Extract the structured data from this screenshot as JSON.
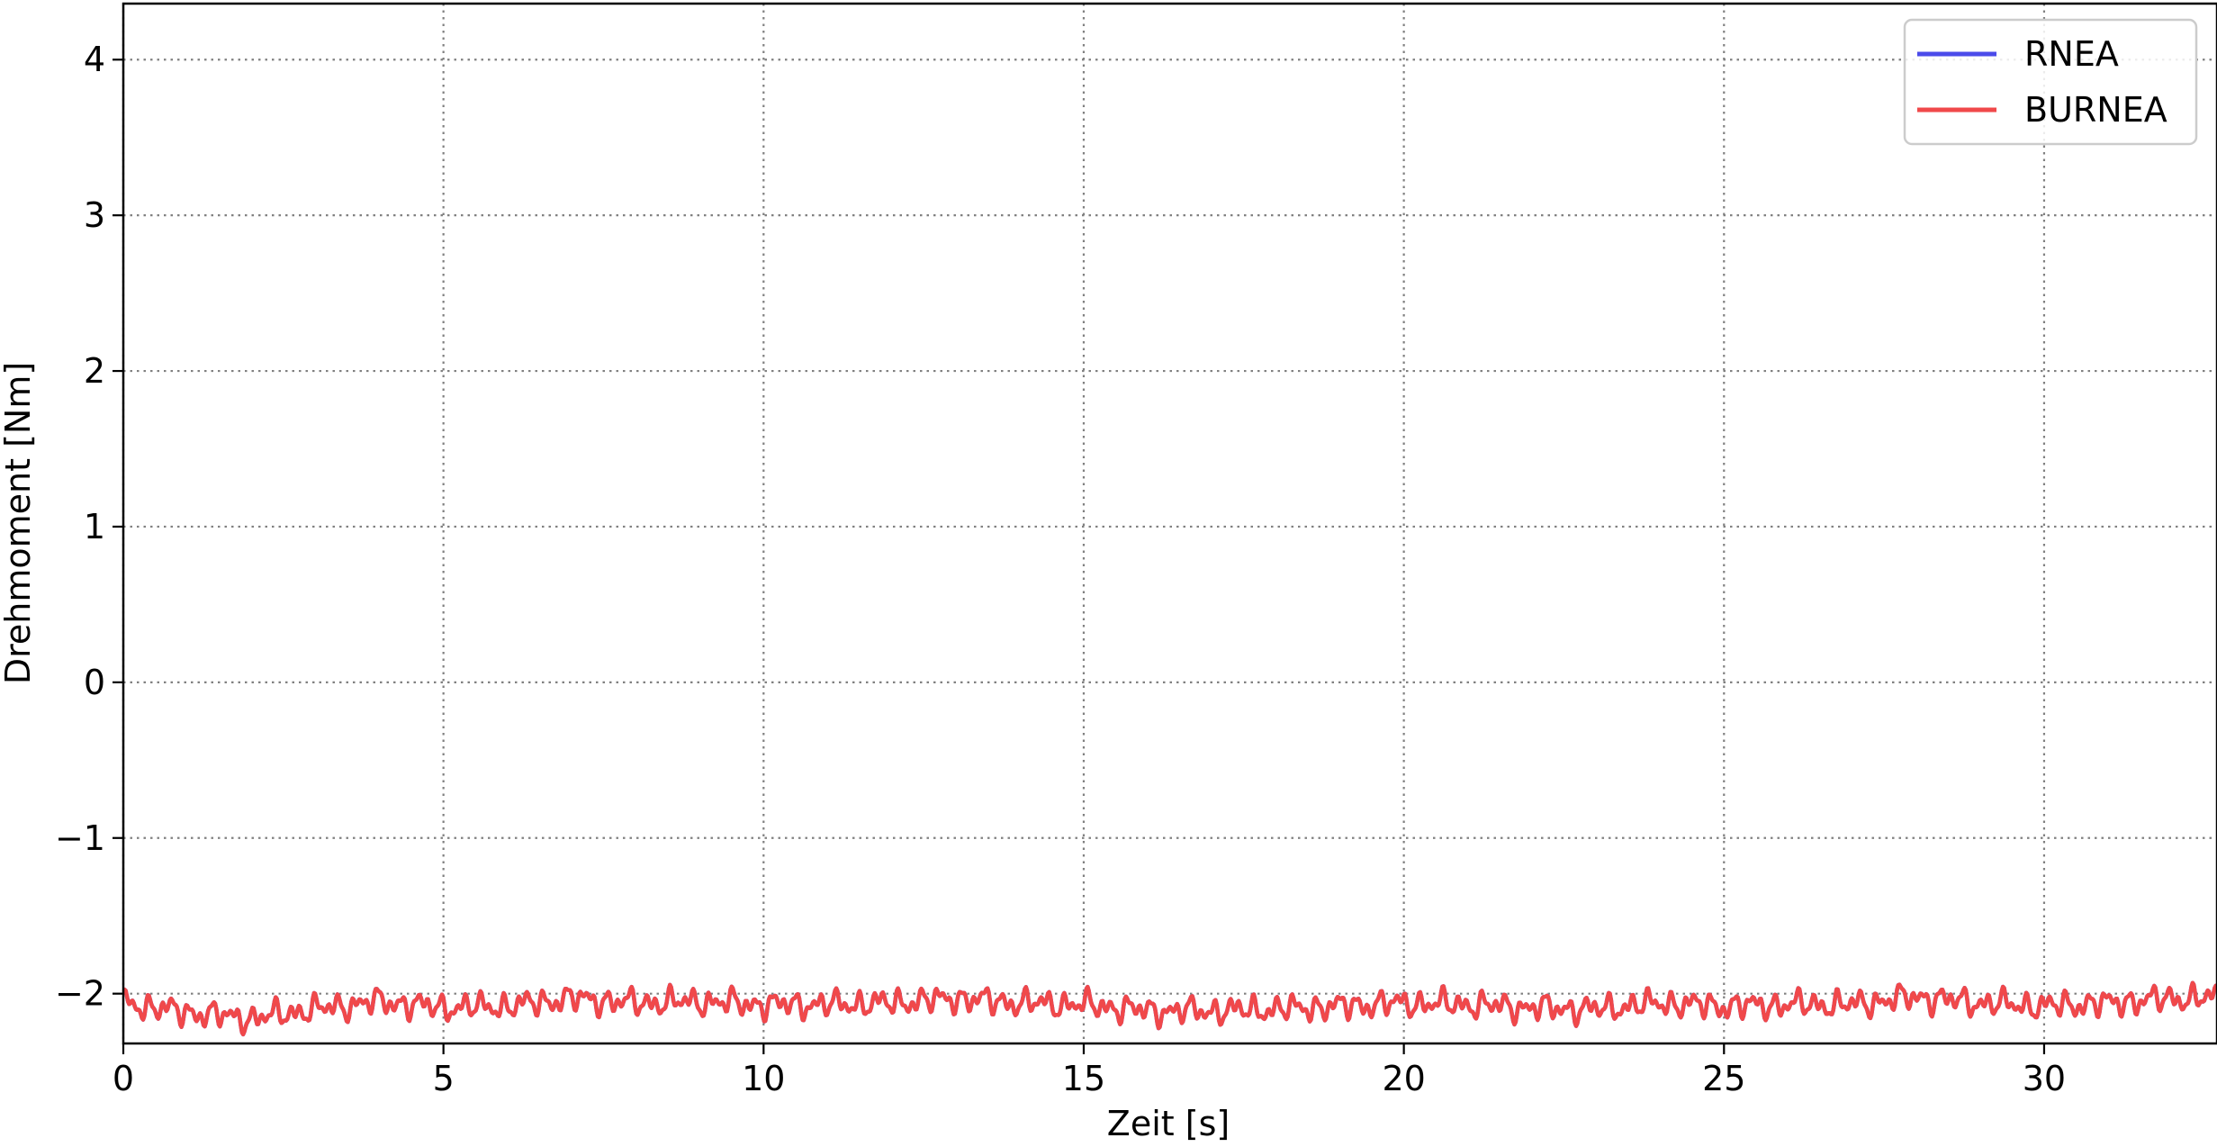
{
  "chart_data": {
    "type": "line",
    "title": "",
    "xlabel": "Zeit [s]",
    "ylabel": "Drehmoment [Nm]",
    "xlim": [
      0,
      32.7
    ],
    "ylim": [
      -2.32,
      4.36
    ],
    "x_ticks": [
      0,
      5,
      10,
      15,
      20,
      25,
      30
    ],
    "x_tick_labels": [
      "0",
      "5",
      "10",
      "15",
      "20",
      "25",
      "30"
    ],
    "y_ticks": [
      -2,
      -1,
      0,
      1,
      2,
      3,
      4
    ],
    "y_tick_labels": [
      "−2",
      "−1",
      "0",
      "1",
      "2",
      "3",
      "4"
    ],
    "grid": true,
    "grid_style": "dotted",
    "legend_position": "top-right",
    "series": [
      {
        "name": "RNEA",
        "color": "#4b4bea",
        "x": [
          0,
          1,
          2,
          3,
          4,
          5,
          6,
          7,
          8,
          9,
          10,
          11,
          12,
          13,
          14,
          15,
          16,
          17,
          18,
          19,
          20,
          21,
          22,
          23,
          24,
          25,
          26,
          27,
          28,
          29,
          30,
          31,
          32,
          32.7
        ],
        "y": [
          -2.06,
          -2.12,
          -2.16,
          -2.1,
          -2.05,
          -2.09,
          -2.08,
          -2.03,
          -2.06,
          -2.05,
          -2.07,
          -2.07,
          -2.06,
          -2.03,
          -2.06,
          -2.07,
          -2.11,
          -2.11,
          -2.1,
          -2.08,
          -2.06,
          -2.07,
          -2.09,
          -2.1,
          -2.06,
          -2.08,
          -2.07,
          -2.07,
          -2.02,
          -2.06,
          -2.08,
          -2.06,
          -2.03,
          -2.03
        ]
      },
      {
        "name": "BURNEA",
        "color": "#f0484a",
        "x": [
          0,
          1,
          2,
          3,
          4,
          5,
          6,
          7,
          8,
          9,
          10,
          11,
          12,
          13,
          14,
          15,
          16,
          17,
          18,
          19,
          20,
          21,
          22,
          23,
          24,
          25,
          26,
          27,
          28,
          29,
          30,
          31,
          32,
          32.7
        ],
        "y": [
          -2.06,
          -2.12,
          -2.16,
          -2.1,
          -2.05,
          -2.09,
          -2.08,
          -2.03,
          -2.06,
          -2.05,
          -2.07,
          -2.07,
          -2.06,
          -2.03,
          -2.06,
          -2.07,
          -2.11,
          -2.11,
          -2.1,
          -2.08,
          -2.06,
          -2.07,
          -2.09,
          -2.1,
          -2.06,
          -2.08,
          -2.07,
          -2.07,
          -2.02,
          -2.06,
          -2.08,
          -2.06,
          -2.03,
          -2.03
        ]
      }
    ]
  }
}
